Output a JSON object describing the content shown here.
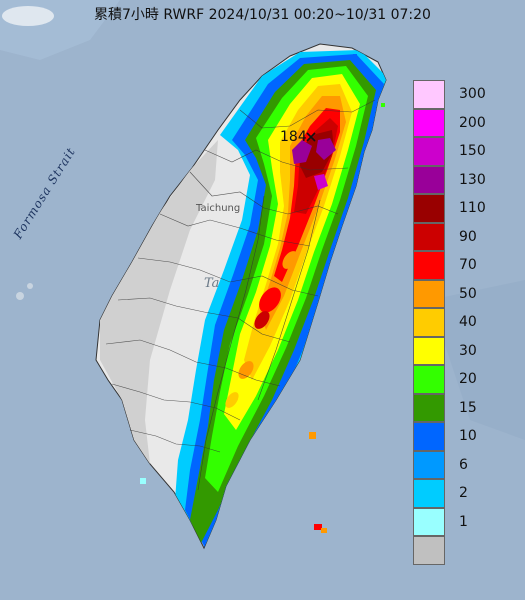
{
  "title": "累積7小時 RWRF 2024/10/31 00:20~10/31 07:20",
  "labels": {
    "strait": "Formosa Strait",
    "taichung": "Taichung",
    "ta": "Ta",
    "max_value": "184"
  },
  "legend": [
    {
      "label": "300",
      "color": "#ffc8ff"
    },
    {
      "label": "200",
      "color": "#ff00ff"
    },
    {
      "label": "150",
      "color": "#cc00cc"
    },
    {
      "label": "130",
      "color": "#990099"
    },
    {
      "label": "110",
      "color": "#990000"
    },
    {
      "label": "90",
      "color": "#cc0000"
    },
    {
      "label": "70",
      "color": "#ff0000"
    },
    {
      "label": "50",
      "color": "#ff9900"
    },
    {
      "label": "40",
      "color": "#ffcc00"
    },
    {
      "label": "30",
      "color": "#ffff00"
    },
    {
      "label": "20",
      "color": "#33ff00"
    },
    {
      "label": "15",
      "color": "#339900"
    },
    {
      "label": "10",
      "color": "#0066ff"
    },
    {
      "label": "6",
      "color": "#0099ff"
    },
    {
      "label": "2",
      "color": "#00ccff"
    },
    {
      "label": "1",
      "color": "#99ffff"
    },
    {
      "label": "",
      "color": "#c0c0c0"
    }
  ]
}
